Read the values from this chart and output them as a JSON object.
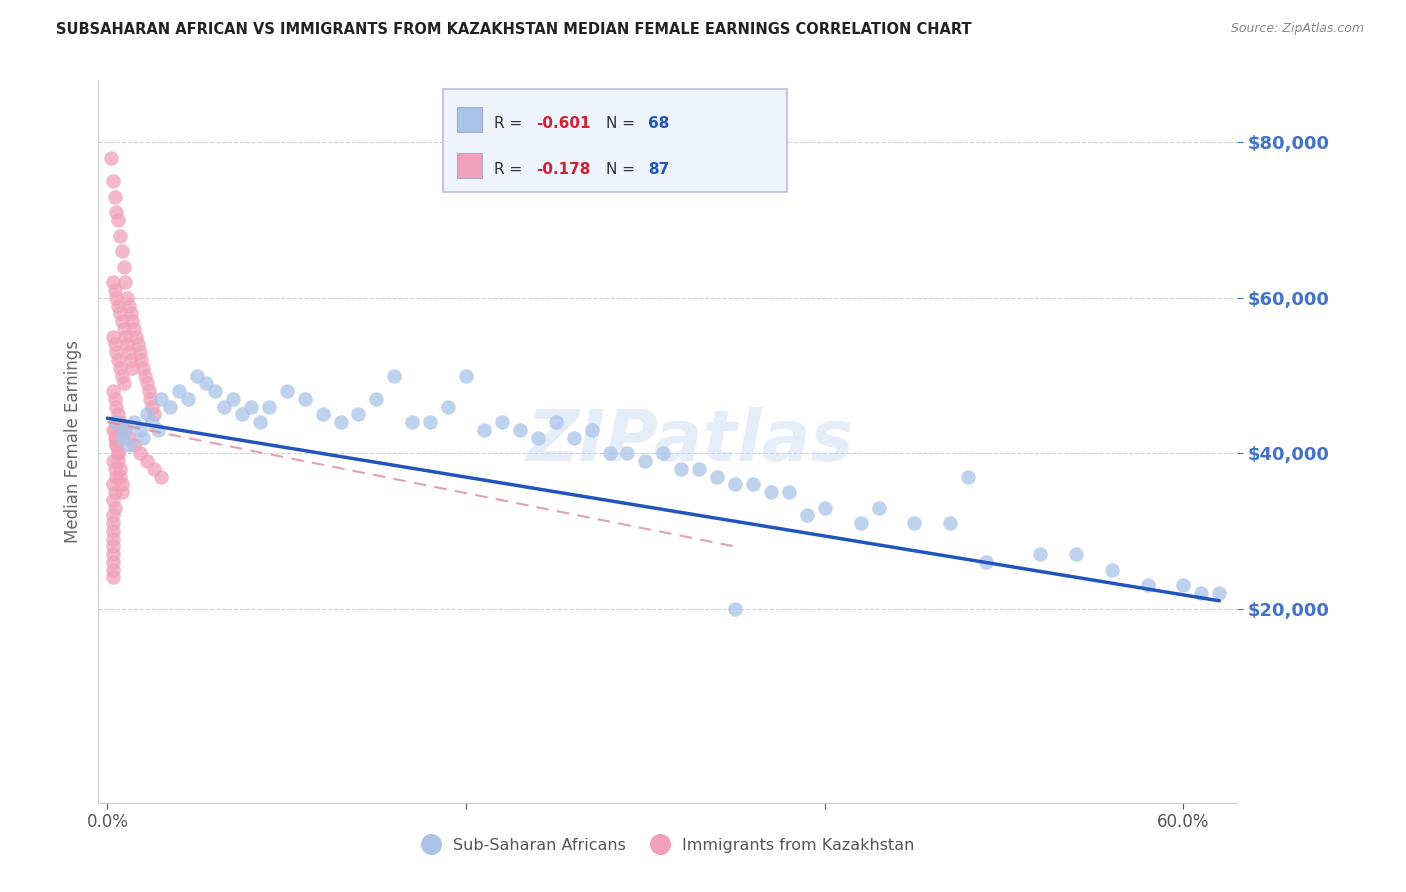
{
  "title": "SUBSAHARAN AFRICAN VS IMMIGRANTS FROM KAZAKHSTAN MEDIAN FEMALE EARNINGS CORRELATION CHART",
  "source": "Source: ZipAtlas.com",
  "ylabel": "Median Female Earnings",
  "xlabel_ticks": [
    "0.0%",
    "60.0%"
  ],
  "xlabel_tick_vals": [
    0.0,
    0.6
  ],
  "ytick_labels": [
    "$80,000",
    "$60,000",
    "$40,000",
    "$20,000"
  ],
  "ytick_vals": [
    80000,
    60000,
    40000,
    20000
  ],
  "ylim": [
    -5000,
    88000
  ],
  "xlim": [
    -0.005,
    0.63
  ],
  "blue_color": "#aac4e8",
  "pink_color": "#f0a0b8",
  "blue_line_color": "#2255bb",
  "pink_line_color": "#dd8899",
  "watermark_text": "ZIPatlas",
  "background_color": "#ffffff",
  "grid_color": "#d0d0d0",
  "right_tick_color": "#4472c4",
  "blue_scatter_x": [
    0.005,
    0.008,
    0.01,
    0.012,
    0.015,
    0.018,
    0.02,
    0.022,
    0.025,
    0.028,
    0.03,
    0.035,
    0.04,
    0.045,
    0.05,
    0.055,
    0.06,
    0.065,
    0.07,
    0.075,
    0.08,
    0.085,
    0.09,
    0.1,
    0.11,
    0.12,
    0.13,
    0.14,
    0.15,
    0.16,
    0.17,
    0.18,
    0.19,
    0.2,
    0.21,
    0.22,
    0.23,
    0.24,
    0.25,
    0.26,
    0.27,
    0.28,
    0.29,
    0.3,
    0.31,
    0.32,
    0.33,
    0.34,
    0.35,
    0.36,
    0.37,
    0.38,
    0.39,
    0.4,
    0.42,
    0.43,
    0.45,
    0.47,
    0.49,
    0.52,
    0.54,
    0.56,
    0.58,
    0.6,
    0.61,
    0.62,
    0.35,
    0.48
  ],
  "blue_scatter_y": [
    44000,
    42000,
    43000,
    41000,
    44000,
    43000,
    42000,
    45000,
    44000,
    43000,
    47000,
    46000,
    48000,
    47000,
    50000,
    49000,
    48000,
    46000,
    47000,
    45000,
    46000,
    44000,
    46000,
    48000,
    47000,
    45000,
    44000,
    45000,
    47000,
    50000,
    44000,
    44000,
    46000,
    50000,
    43000,
    44000,
    43000,
    42000,
    44000,
    42000,
    43000,
    40000,
    40000,
    39000,
    40000,
    38000,
    38000,
    37000,
    36000,
    36000,
    35000,
    35000,
    32000,
    33000,
    31000,
    33000,
    31000,
    31000,
    26000,
    27000,
    27000,
    25000,
    23000,
    23000,
    22000,
    22000,
    20000,
    37000
  ],
  "pink_scatter_x": [
    0.002,
    0.003,
    0.004,
    0.005,
    0.006,
    0.007,
    0.008,
    0.009,
    0.01,
    0.011,
    0.012,
    0.013,
    0.014,
    0.015,
    0.016,
    0.017,
    0.018,
    0.019,
    0.02,
    0.021,
    0.022,
    0.023,
    0.024,
    0.025,
    0.026,
    0.003,
    0.004,
    0.005,
    0.006,
    0.007,
    0.008,
    0.009,
    0.01,
    0.011,
    0.012,
    0.013,
    0.014,
    0.003,
    0.004,
    0.005,
    0.006,
    0.007,
    0.008,
    0.009,
    0.003,
    0.004,
    0.005,
    0.006,
    0.007,
    0.008,
    0.003,
    0.004,
    0.005,
    0.006,
    0.003,
    0.004,
    0.005,
    0.003,
    0.004,
    0.003,
    0.004,
    0.003,
    0.003,
    0.003,
    0.003,
    0.003,
    0.003,
    0.003,
    0.003,
    0.003,
    0.004,
    0.004,
    0.005,
    0.005,
    0.006,
    0.006,
    0.007,
    0.007,
    0.008,
    0.008,
    0.01,
    0.012,
    0.015,
    0.018,
    0.022,
    0.026,
    0.03
  ],
  "pink_scatter_y": [
    78000,
    75000,
    73000,
    71000,
    70000,
    68000,
    66000,
    64000,
    62000,
    60000,
    59000,
    58000,
    57000,
    56000,
    55000,
    54000,
    53000,
    52000,
    51000,
    50000,
    49000,
    48000,
    47000,
    46000,
    45000,
    62000,
    61000,
    60000,
    59000,
    58000,
    57000,
    56000,
    55000,
    54000,
    53000,
    52000,
    51000,
    55000,
    54000,
    53000,
    52000,
    51000,
    50000,
    49000,
    48000,
    47000,
    46000,
    45000,
    44000,
    43000,
    43000,
    42000,
    41000,
    40000,
    39000,
    38000,
    37000,
    36000,
    35000,
    34000,
    33000,
    32000,
    31000,
    30000,
    29000,
    28000,
    27000,
    26000,
    25000,
    24000,
    44000,
    43000,
    42000,
    41000,
    40000,
    39000,
    38000,
    37000,
    36000,
    35000,
    43000,
    42000,
    41000,
    40000,
    39000,
    38000,
    37000
  ],
  "blue_line_x": [
    0.0,
    0.62
  ],
  "blue_line_y": [
    44500,
    21000
  ],
  "pink_line_x": [
    0.0,
    0.35
  ],
  "pink_line_y": [
    44000,
    28000
  ]
}
